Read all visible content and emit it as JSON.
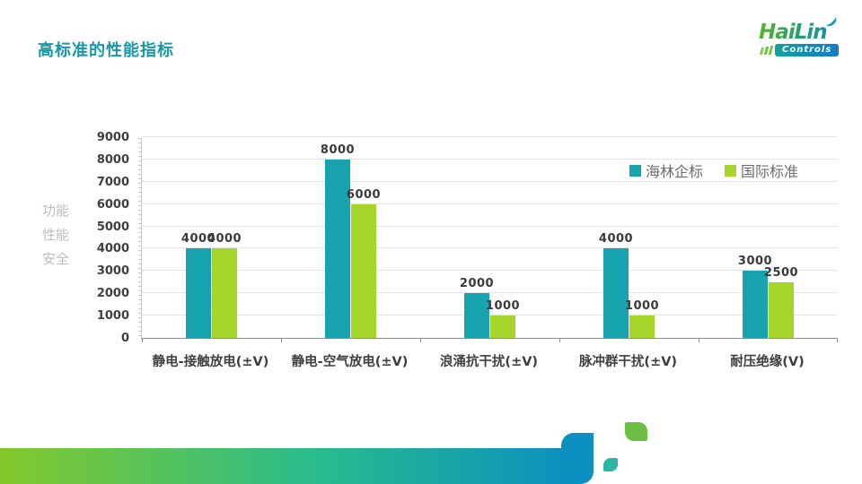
{
  "slide": {
    "title": "高标准的性能指标",
    "logo": {
      "brand": "HaiLin",
      "sub": "Controls"
    }
  },
  "colors": {
    "title": "#1897A6",
    "series_hailin": "#18A4AE",
    "series_intl": "#A6D62A",
    "axis_text": "#3F3F3F",
    "legend_text": "#6C6C6C",
    "gridline": "#E4E4E4",
    "deco_gradient_start": "#84C92A",
    "deco_gradient_end": "#0C90C0",
    "deco_leaf_green": "#6CBE45",
    "deco_leaf_teal": "#2BB6A3"
  },
  "chart_data": {
    "type": "bar",
    "categories": [
      "静电-接触放电(±V)",
      "静电-空气放电(±V)",
      "浪涌抗干扰(±V)",
      "脉冲群干扰(±V)",
      "耐压绝缘(V)"
    ],
    "series": [
      {
        "name": "海林企标",
        "color": "#18A4AE",
        "values": [
          4000,
          8000,
          2000,
          4000,
          3000
        ]
      },
      {
        "name": "国际标准",
        "color": "#A6D62A",
        "values": [
          4000,
          6000,
          1000,
          1000,
          2500
        ]
      }
    ],
    "title": "",
    "xlabel": "",
    "ylabel": "功能性能安全",
    "ylabel_lines": [
      "功能",
      "性能",
      "安全"
    ],
    "ylim": [
      0,
      9000
    ],
    "ytick_step": 1000,
    "grid": true,
    "legend_position": "top-right",
    "data_labels": true
  }
}
